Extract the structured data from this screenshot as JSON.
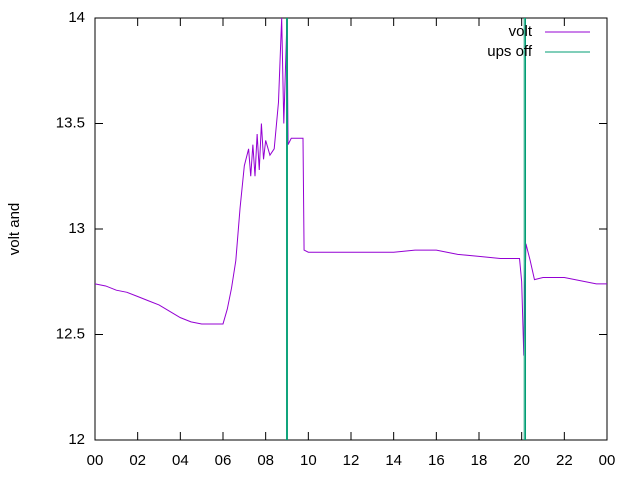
{
  "chart_data": {
    "type": "line",
    "ylabel": "volt and",
    "xlim": [
      0,
      24
    ],
    "ylim": [
      12,
      14
    ],
    "xticks": [
      {
        "value": 0,
        "label": "00"
      },
      {
        "value": 2,
        "label": "02"
      },
      {
        "value": 4,
        "label": "04"
      },
      {
        "value": 6,
        "label": "06"
      },
      {
        "value": 8,
        "label": "08"
      },
      {
        "value": 10,
        "label": "10"
      },
      12,
      14,
      16,
      18,
      20,
      22,
      {
        "value": 24,
        "label": "00"
      }
    ],
    "yticks": [
      12,
      12.5,
      13,
      13.5,
      14
    ],
    "grid": false,
    "legend": "top-right",
    "series": [
      {
        "name": "volt",
        "color": "#9400d3",
        "x": [
          0,
          0.5,
          1,
          1.5,
          2,
          2.5,
          3,
          3.5,
          4,
          4.5,
          5,
          5.5,
          6,
          6.2,
          6.4,
          6.6,
          6.8,
          7,
          7.2,
          7.3,
          7.4,
          7.5,
          7.6,
          7.7,
          7.8,
          7.9,
          8,
          8.2,
          8.4,
          8.6,
          8.75,
          8.85,
          9.0,
          9.05,
          9.2,
          9.5,
          9.75,
          9.8,
          10,
          11,
          12,
          13,
          14,
          15,
          16,
          17,
          18,
          19,
          19.9,
          20.0,
          20.1,
          20.15,
          20.2,
          20.4,
          20.6,
          21,
          22,
          23,
          23.5,
          24
        ],
        "values": [
          12.74,
          12.73,
          12.71,
          12.7,
          12.68,
          12.66,
          12.64,
          12.61,
          12.58,
          12.56,
          12.55,
          12.55,
          12.55,
          12.62,
          12.72,
          12.85,
          13.1,
          13.3,
          13.38,
          13.25,
          13.4,
          13.25,
          13.45,
          13.28,
          13.5,
          13.33,
          13.42,
          13.35,
          13.38,
          13.6,
          14,
          13.5,
          14,
          13.4,
          13.43,
          13.43,
          13.43,
          12.9,
          12.89,
          12.89,
          12.89,
          12.89,
          12.89,
          12.9,
          12.9,
          12.88,
          12.87,
          12.86,
          12.86,
          12.75,
          12.4,
          12.7,
          12.93,
          12.85,
          12.76,
          12.77,
          12.77,
          12.75,
          12.74,
          12.74
        ]
      },
      {
        "name": "ups off",
        "color": "#009e73",
        "x": [
          8.98,
          8.98,
          9.02,
          9.02,
          null,
          20.12,
          20.12,
          20.18,
          20.18
        ],
        "values": [
          12,
          14,
          14,
          12,
          null,
          12,
          14,
          14,
          12
        ]
      }
    ]
  }
}
